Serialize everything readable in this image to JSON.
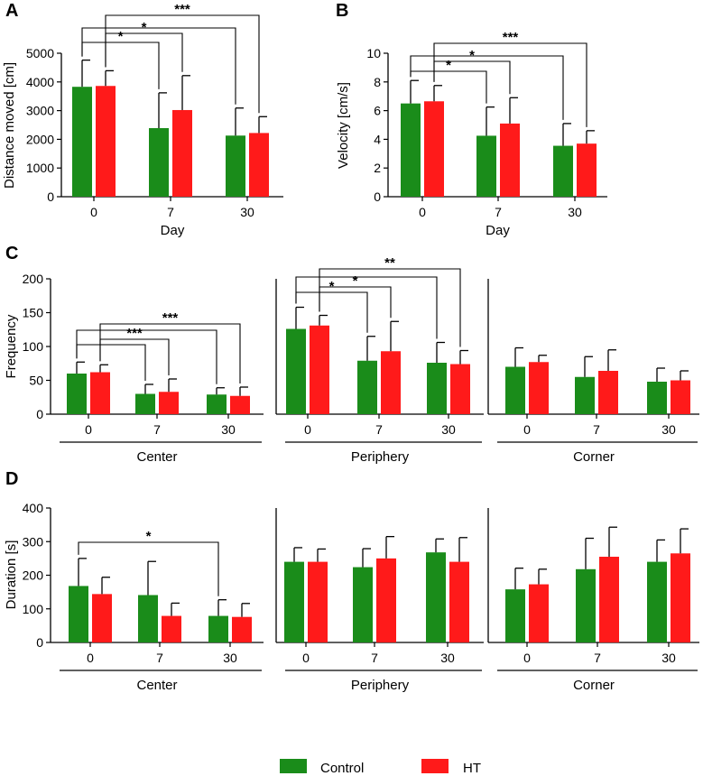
{
  "legend": [
    {
      "name": "Control",
      "color": "#1a8c1a"
    },
    {
      "name": "HT",
      "color": "#ff1a1a"
    }
  ],
  "chart_data": [
    {
      "id": "A",
      "type": "bar",
      "panel_label": "A",
      "ylabel": "Distance moved [cm]",
      "xlabel": "Day",
      "ylim": [
        0,
        5000
      ],
      "yticks": [
        0,
        1000,
        2000,
        3000,
        4000,
        5000
      ],
      "categories": [
        "0",
        "7",
        "30"
      ],
      "series": [
        {
          "name": "Control",
          "values": [
            3830,
            2390,
            2130
          ],
          "sd": [
            930,
            1230,
            960
          ]
        },
        {
          "name": "HT",
          "values": [
            3860,
            3020,
            2220
          ],
          "sd": [
            530,
            1200,
            570
          ]
        }
      ],
      "significance": [
        {
          "from": [
            0,
            0
          ],
          "to": [
            1,
            0
          ],
          "label": "*"
        },
        {
          "from": [
            0,
            1
          ],
          "to": [
            1,
            1
          ],
          "label": "*"
        },
        {
          "from": [
            0,
            0
          ],
          "to": [
            2,
            0
          ],
          "label": ""
        },
        {
          "from": [
            0,
            1
          ],
          "to": [
            2,
            1
          ],
          "label": "***"
        }
      ]
    },
    {
      "id": "B",
      "type": "bar",
      "panel_label": "B",
      "ylabel": "Velocity [cm/s]",
      "xlabel": "Day",
      "ylim": [
        0,
        10
      ],
      "yticks": [
        0,
        2,
        4,
        6,
        8,
        10
      ],
      "categories": [
        "0",
        "7",
        "30"
      ],
      "series": [
        {
          "name": "Control",
          "values": [
            6.5,
            4.25,
            3.55
          ],
          "sd": [
            1.6,
            2.0,
            1.55
          ]
        },
        {
          "name": "HT",
          "values": [
            6.65,
            5.1,
            3.7
          ],
          "sd": [
            1.1,
            1.8,
            0.9
          ]
        }
      ],
      "significance": [
        {
          "from": [
            0,
            0
          ],
          "to": [
            1,
            0
          ],
          "label": "*"
        },
        {
          "from": [
            0,
            1
          ],
          "to": [
            1,
            1
          ],
          "label": "*"
        },
        {
          "from": [
            0,
            0
          ],
          "to": [
            2,
            0
          ],
          "label": ""
        },
        {
          "from": [
            0,
            1
          ],
          "to": [
            2,
            1
          ],
          "label": "***"
        }
      ]
    },
    {
      "id": "C-center",
      "type": "bar",
      "panel_label": "C",
      "ylabel": "Frequency",
      "group_label": "Center",
      "ylim": [
        0,
        200
      ],
      "yticks": [
        0,
        50,
        100,
        150,
        200
      ],
      "categories": [
        "0",
        "7",
        "30"
      ],
      "series": [
        {
          "name": "Control",
          "values": [
            60,
            30,
            29
          ],
          "sd": [
            17,
            14,
            10
          ]
        },
        {
          "name": "HT",
          "values": [
            62,
            33,
            27
          ],
          "sd": [
            11,
            19,
            13
          ]
        }
      ],
      "significance": [
        {
          "from": [
            0,
            0
          ],
          "to": [
            1,
            0
          ],
          "label": ""
        },
        {
          "from": [
            0,
            1
          ],
          "to": [
            1,
            1
          ],
          "label": "***"
        },
        {
          "from": [
            0,
            0
          ],
          "to": [
            2,
            0
          ],
          "label": ""
        },
        {
          "from": [
            0,
            1
          ],
          "to": [
            2,
            1
          ],
          "label": "***"
        }
      ]
    },
    {
      "id": "C-periphery",
      "type": "bar",
      "group_label": "Periphery",
      "ylim": [
        0,
        200
      ],
      "categories": [
        "0",
        "7",
        "30"
      ],
      "series": [
        {
          "name": "Control",
          "values": [
            126,
            79,
            76
          ],
          "sd": [
            32,
            36,
            30
          ]
        },
        {
          "name": "HT",
          "values": [
            131,
            93,
            74
          ],
          "sd": [
            15,
            44,
            20
          ]
        }
      ],
      "significance": [
        {
          "from": [
            0,
            0
          ],
          "to": [
            1,
            0
          ],
          "label": "*"
        },
        {
          "from": [
            0,
            1
          ],
          "to": [
            1,
            1
          ],
          "label": "*"
        },
        {
          "from": [
            0,
            0
          ],
          "to": [
            2,
            0
          ],
          "label": ""
        },
        {
          "from": [
            0,
            1
          ],
          "to": [
            2,
            1
          ],
          "label": "**"
        }
      ]
    },
    {
      "id": "C-corner",
      "type": "bar",
      "group_label": "Corner",
      "ylim": [
        0,
        200
      ],
      "categories": [
        "0",
        "7",
        "30"
      ],
      "series": [
        {
          "name": "Control",
          "values": [
            70,
            55,
            48
          ],
          "sd": [
            28,
            30,
            20
          ]
        },
        {
          "name": "HT",
          "values": [
            77,
            64,
            50
          ],
          "sd": [
            10,
            31,
            14
          ]
        }
      ],
      "significance": []
    },
    {
      "id": "D-center",
      "type": "bar",
      "panel_label": "D",
      "ylabel": "Duration [s]",
      "group_label": "Center",
      "ylim": [
        0,
        400
      ],
      "yticks": [
        0,
        100,
        200,
        300,
        400
      ],
      "categories": [
        "0",
        "7",
        "30"
      ],
      "series": [
        {
          "name": "Control",
          "values": [
            168,
            141,
            79
          ],
          "sd": [
            82,
            100,
            48
          ]
        },
        {
          "name": "HT",
          "values": [
            144,
            79,
            76
          ],
          "sd": [
            50,
            38,
            40
          ]
        }
      ],
      "significance": [
        {
          "from": [
            0,
            0
          ],
          "to": [
            2,
            0
          ],
          "label": "*"
        }
      ]
    },
    {
      "id": "D-periphery",
      "type": "bar",
      "group_label": "Periphery",
      "ylim": [
        0,
        400
      ],
      "categories": [
        "0",
        "7",
        "30"
      ],
      "series": [
        {
          "name": "Control",
          "values": [
            240,
            224,
            268
          ],
          "sd": [
            42,
            55,
            40
          ]
        },
        {
          "name": "HT",
          "values": [
            240,
            250,
            240
          ],
          "sd": [
            38,
            65,
            72
          ]
        }
      ],
      "significance": []
    },
    {
      "id": "D-corner",
      "type": "bar",
      "group_label": "Corner",
      "ylim": [
        0,
        400
      ],
      "categories": [
        "0",
        "7",
        "30"
      ],
      "series": [
        {
          "name": "Control",
          "values": [
            158,
            218,
            240
          ],
          "sd": [
            63,
            92,
            65
          ]
        },
        {
          "name": "HT",
          "values": [
            173,
            255,
            265
          ],
          "sd": [
            45,
            88,
            73
          ]
        }
      ],
      "significance": []
    }
  ]
}
